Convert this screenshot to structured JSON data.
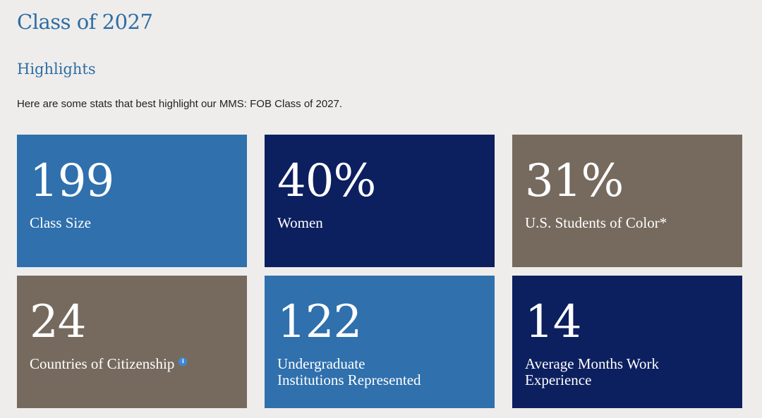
{
  "page": {
    "title": "Class of 2027"
  },
  "highlights": {
    "heading": "Highlights",
    "intro": "Here are some stats that best highlight our MMS: FOB Class of 2027.",
    "info_icon_glyph": "i",
    "stats": [
      {
        "value": "199",
        "label": "Class Size",
        "color": "#2f70ad"
      },
      {
        "value": "40%",
        "label": "Women",
        "color": "#0c1f5f"
      },
      {
        "value": "31%",
        "label": "U.S. Students of Color*",
        "color": "#766a5e"
      },
      {
        "value": "24",
        "label": "Countries of Citizenship",
        "color": "#766a5e",
        "icon": "info-icon"
      },
      {
        "value": "122",
        "label": "Undergraduate\nInstitutions Represented",
        "color": "#2f70ad"
      },
      {
        "value": "14",
        "label": "Average Months Work\nExperience",
        "color": "#0c1f5f"
      }
    ]
  }
}
